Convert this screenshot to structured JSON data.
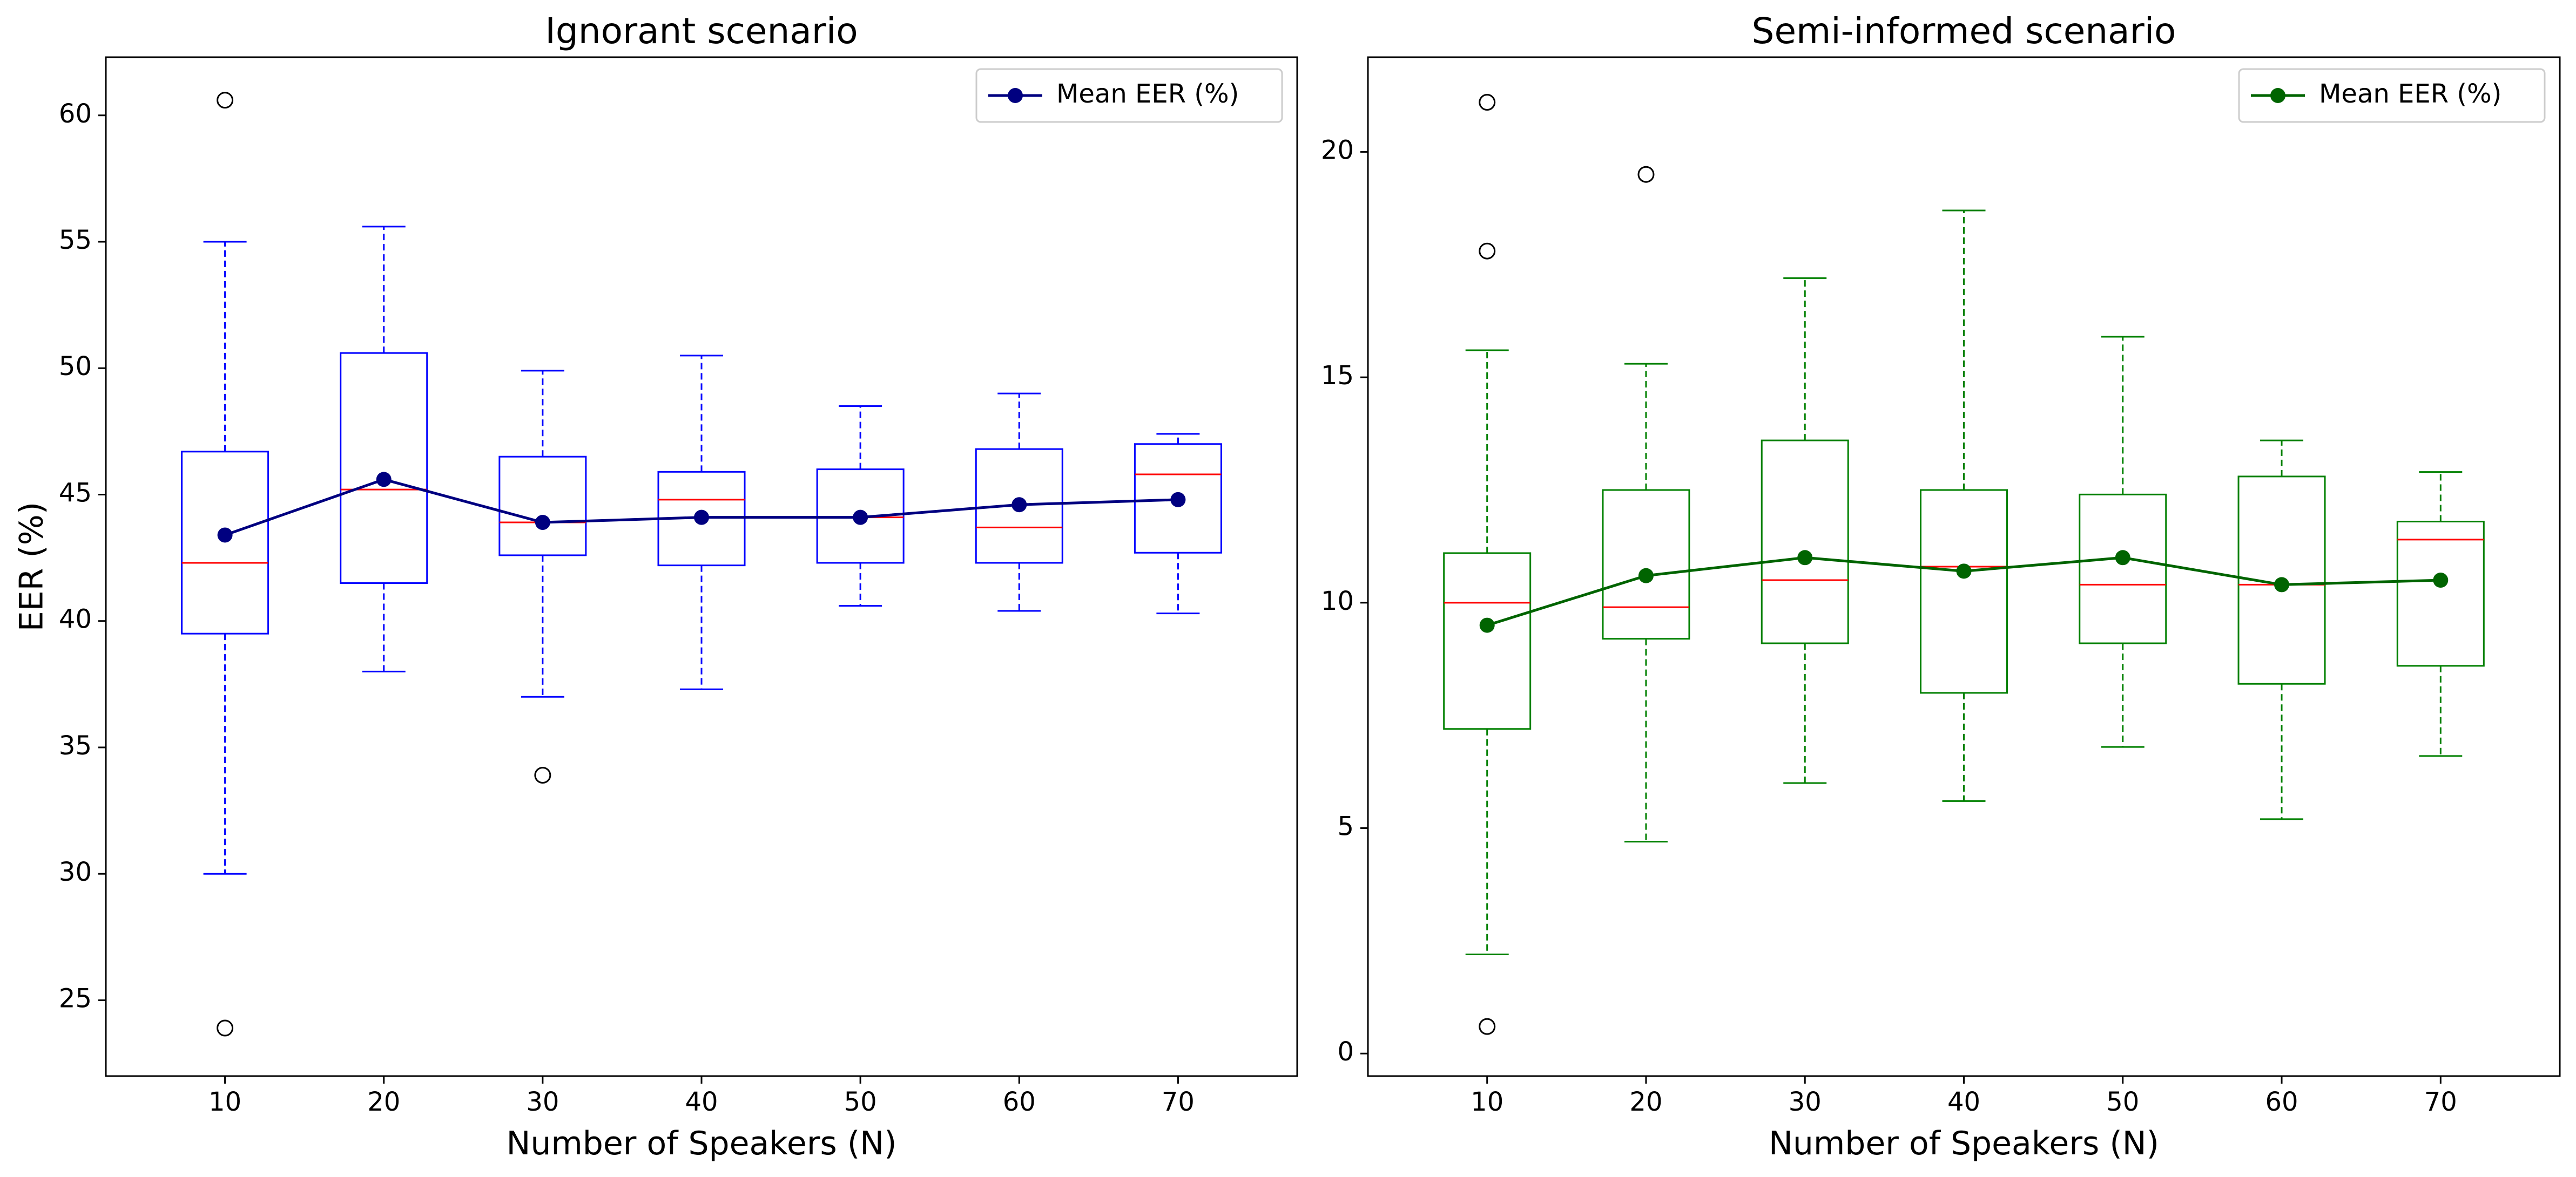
{
  "chart_data": [
    {
      "type": "box",
      "title": "Ignorant scenario",
      "xlabel": "Number of Speakers (N)",
      "ylabel": "EER (%)",
      "categories": [
        "10",
        "20",
        "30",
        "40",
        "50",
        "60",
        "70"
      ],
      "ylim": [
        22,
        62.3
      ],
      "yticks": [
        25,
        30,
        35,
        40,
        45,
        50,
        55,
        60
      ],
      "legend": {
        "label": "Mean EER (%)",
        "position": "top-right"
      },
      "colors": {
        "box": "#0000ff",
        "median": "#ff0000",
        "mean": "#000080"
      },
      "boxes": [
        {
          "category": "10",
          "whisker_low": 30.0,
          "q1": 39.5,
          "median": 42.3,
          "q3": 46.7,
          "whisker_high": 55.0,
          "outliers": [
            60.6,
            23.9
          ],
          "mean": 43.4
        },
        {
          "category": "20",
          "whisker_low": 38.0,
          "q1": 41.5,
          "median": 45.2,
          "q3": 50.6,
          "whisker_high": 55.6,
          "outliers": [],
          "mean": 45.6
        },
        {
          "category": "30",
          "whisker_low": 37.0,
          "q1": 42.6,
          "median": 43.9,
          "q3": 46.5,
          "whisker_high": 49.9,
          "outliers": [
            33.9
          ],
          "mean": 43.9
        },
        {
          "category": "40",
          "whisker_low": 37.3,
          "q1": 42.2,
          "median": 44.8,
          "q3": 45.9,
          "whisker_high": 50.5,
          "outliers": [],
          "mean": 44.1
        },
        {
          "category": "50",
          "whisker_low": 40.6,
          "q1": 42.3,
          "median": 44.1,
          "q3": 46.0,
          "whisker_high": 48.5,
          "outliers": [],
          "mean": 44.1
        },
        {
          "category": "60",
          "whisker_low": 40.4,
          "q1": 42.3,
          "median": 43.7,
          "q3": 46.8,
          "whisker_high": 49.0,
          "outliers": [],
          "mean": 44.6
        },
        {
          "category": "70",
          "whisker_low": 40.3,
          "q1": 42.7,
          "median": 45.8,
          "q3": 47.0,
          "whisker_high": 47.4,
          "outliers": [],
          "mean": 44.8
        }
      ]
    },
    {
      "type": "box",
      "title": "Semi-informed scenario",
      "xlabel": "Number of Speakers (N)",
      "ylabel": "",
      "categories": [
        "10",
        "20",
        "30",
        "40",
        "50",
        "60",
        "70"
      ],
      "ylim": [
        -0.5,
        22.1
      ],
      "yticks": [
        0,
        5,
        10,
        15,
        20
      ],
      "legend": {
        "label": "Mean EER (%)",
        "position": "top-right"
      },
      "colors": {
        "box": "#008000",
        "median": "#ff0000",
        "mean": "#006400"
      },
      "boxes": [
        {
          "category": "10",
          "whisker_low": 2.2,
          "q1": 7.2,
          "median": 10.0,
          "q3": 11.1,
          "whisker_high": 15.6,
          "outliers": [
            21.1,
            17.8,
            0.6
          ],
          "mean": 9.5
        },
        {
          "category": "20",
          "whisker_low": 4.7,
          "q1": 9.2,
          "median": 9.9,
          "q3": 12.5,
          "whisker_high": 15.3,
          "outliers": [
            19.5
          ],
          "mean": 10.6
        },
        {
          "category": "30",
          "whisker_low": 6.0,
          "q1": 9.1,
          "median": 10.5,
          "q3": 13.6,
          "whisker_high": 17.2,
          "outliers": [],
          "mean": 11.0
        },
        {
          "category": "40",
          "whisker_low": 5.6,
          "q1": 8.0,
          "median": 10.8,
          "q3": 12.5,
          "whisker_high": 18.7,
          "outliers": [],
          "mean": 10.7
        },
        {
          "category": "50",
          "whisker_low": 6.8,
          "q1": 9.1,
          "median": 10.4,
          "q3": 12.4,
          "whisker_high": 15.9,
          "outliers": [],
          "mean": 11.0
        },
        {
          "category": "60",
          "whisker_low": 5.2,
          "q1": 8.2,
          "median": 10.4,
          "q3": 12.8,
          "whisker_high": 13.6,
          "outliers": [],
          "mean": 10.4
        },
        {
          "category": "70",
          "whisker_low": 6.6,
          "q1": 8.6,
          "median": 11.4,
          "q3": 11.8,
          "whisker_high": 12.9,
          "outliers": [],
          "mean": 10.5
        }
      ]
    }
  ]
}
